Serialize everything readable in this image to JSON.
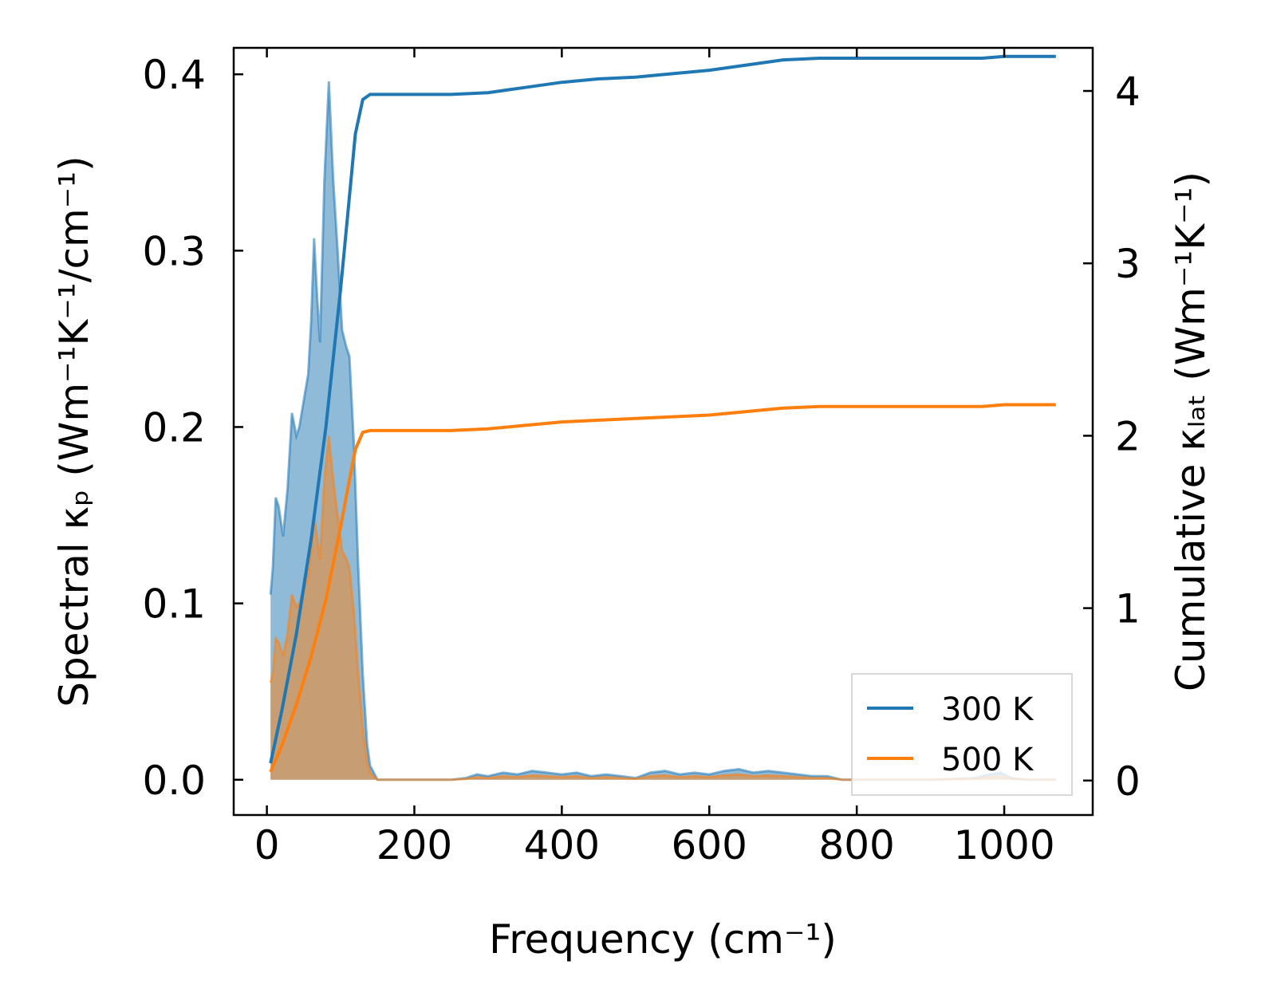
{
  "chart_data": {
    "type": "line",
    "xlabel": "Frequency (cm⁻¹)",
    "ylabel_left": "Spectral κₚ (Wm⁻¹K⁻¹/cm⁻¹)",
    "ylabel_right": "Cumulative κₗₐₜ (Wm⁻¹K⁻¹)",
    "xlim": [
      -45,
      1120
    ],
    "ylim_left": [
      -0.02,
      0.415
    ],
    "ylim_right": [
      -0.2,
      4.25
    ],
    "xticks": [
      0,
      200,
      400,
      600,
      800,
      1000
    ],
    "xtick_labels": [
      "0",
      "200",
      "400",
      "600",
      "800",
      "1000"
    ],
    "yticks_left": [
      0.0,
      0.1,
      0.2,
      0.3,
      0.4
    ],
    "ytick_labels_left": [
      "0.0",
      "0.1",
      "0.2",
      "0.3",
      "0.4"
    ],
    "yticks_right": [
      0,
      1,
      2,
      3,
      4
    ],
    "ytick_labels_right": [
      "0",
      "1",
      "2",
      "3",
      "4"
    ],
    "legend_position": "bottom-right",
    "series": [
      {
        "name": "300 K",
        "color": "#1f77b4",
        "spectral": [
          [
            5,
            0.105
          ],
          [
            8,
            0.12
          ],
          [
            12,
            0.16
          ],
          [
            16,
            0.155
          ],
          [
            22,
            0.138
          ],
          [
            28,
            0.165
          ],
          [
            34,
            0.208
          ],
          [
            40,
            0.195
          ],
          [
            44,
            0.2
          ],
          [
            50,
            0.215
          ],
          [
            56,
            0.23
          ],
          [
            60,
            0.26
          ],
          [
            64,
            0.307
          ],
          [
            68,
            0.275
          ],
          [
            72,
            0.248
          ],
          [
            78,
            0.34
          ],
          [
            84,
            0.396
          ],
          [
            90,
            0.34
          ],
          [
            96,
            0.3
          ],
          [
            102,
            0.255
          ],
          [
            108,
            0.245
          ],
          [
            112,
            0.24
          ],
          [
            118,
            0.19
          ],
          [
            124,
            0.12
          ],
          [
            130,
            0.06
          ],
          [
            136,
            0.02
          ],
          [
            140,
            0.008
          ],
          [
            150,
            0.0
          ],
          [
            250,
            0.0
          ],
          [
            270,
            0.001
          ],
          [
            285,
            0.003
          ],
          [
            300,
            0.002
          ],
          [
            320,
            0.004
          ],
          [
            340,
            0.003
          ],
          [
            360,
            0.005
          ],
          [
            380,
            0.004
          ],
          [
            400,
            0.003
          ],
          [
            420,
            0.004
          ],
          [
            440,
            0.002
          ],
          [
            460,
            0.003
          ],
          [
            480,
            0.002
          ],
          [
            500,
            0.001
          ],
          [
            520,
            0.004
          ],
          [
            540,
            0.005
          ],
          [
            560,
            0.003
          ],
          [
            580,
            0.004
          ],
          [
            600,
            0.003
          ],
          [
            620,
            0.005
          ],
          [
            640,
            0.006
          ],
          [
            660,
            0.004
          ],
          [
            680,
            0.005
          ],
          [
            700,
            0.004
          ],
          [
            720,
            0.003
          ],
          [
            740,
            0.002
          ],
          [
            760,
            0.002
          ],
          [
            780,
            0.0
          ],
          [
            800,
            0.0
          ],
          [
            900,
            0.0
          ],
          [
            960,
            0.001
          ],
          [
            980,
            0.003
          ],
          [
            995,
            0.004
          ],
          [
            1010,
            0.001
          ],
          [
            1030,
            0.0
          ],
          [
            1070,
            0.0
          ]
        ],
        "cumulative": [
          [
            5,
            0.1
          ],
          [
            20,
            0.4
          ],
          [
            40,
            0.85
          ],
          [
            60,
            1.4
          ],
          [
            80,
            2.05
          ],
          [
            100,
            2.85
          ],
          [
            110,
            3.3
          ],
          [
            120,
            3.75
          ],
          [
            130,
            3.95
          ],
          [
            140,
            3.98
          ],
          [
            200,
            3.98
          ],
          [
            250,
            3.98
          ],
          [
            300,
            3.99
          ],
          [
            350,
            4.02
          ],
          [
            400,
            4.05
          ],
          [
            450,
            4.07
          ],
          [
            500,
            4.08
          ],
          [
            550,
            4.1
          ],
          [
            600,
            4.12
          ],
          [
            650,
            4.15
          ],
          [
            700,
            4.18
          ],
          [
            750,
            4.19
          ],
          [
            800,
            4.19
          ],
          [
            900,
            4.19
          ],
          [
            970,
            4.19
          ],
          [
            1000,
            4.2
          ],
          [
            1070,
            4.2
          ]
        ]
      },
      {
        "name": "500 K",
        "color": "#ff7f0e",
        "spectral": [
          [
            5,
            0.055
          ],
          [
            8,
            0.06
          ],
          [
            12,
            0.08
          ],
          [
            16,
            0.078
          ],
          [
            22,
            0.07
          ],
          [
            28,
            0.083
          ],
          [
            34,
            0.105
          ],
          [
            40,
            0.098
          ],
          [
            44,
            0.1
          ],
          [
            50,
            0.108
          ],
          [
            56,
            0.115
          ],
          [
            60,
            0.13
          ],
          [
            64,
            0.15
          ],
          [
            68,
            0.138
          ],
          [
            72,
            0.125
          ],
          [
            78,
            0.17
          ],
          [
            84,
            0.195
          ],
          [
            90,
            0.17
          ],
          [
            96,
            0.15
          ],
          [
            102,
            0.13
          ],
          [
            108,
            0.125
          ],
          [
            112,
            0.12
          ],
          [
            118,
            0.095
          ],
          [
            124,
            0.06
          ],
          [
            130,
            0.03
          ],
          [
            136,
            0.01
          ],
          [
            140,
            0.004
          ],
          [
            150,
            0.0
          ],
          [
            250,
            0.0
          ],
          [
            270,
            0.0005
          ],
          [
            285,
            0.0015
          ],
          [
            300,
            0.001
          ],
          [
            320,
            0.002
          ],
          [
            340,
            0.0015
          ],
          [
            360,
            0.0025
          ],
          [
            380,
            0.002
          ],
          [
            400,
            0.0015
          ],
          [
            420,
            0.002
          ],
          [
            440,
            0.001
          ],
          [
            460,
            0.0015
          ],
          [
            480,
            0.001
          ],
          [
            500,
            0.0005
          ],
          [
            520,
            0.002
          ],
          [
            540,
            0.0025
          ],
          [
            560,
            0.0015
          ],
          [
            580,
            0.002
          ],
          [
            600,
            0.0015
          ],
          [
            620,
            0.0025
          ],
          [
            640,
            0.003
          ],
          [
            660,
            0.002
          ],
          [
            680,
            0.0025
          ],
          [
            700,
            0.002
          ],
          [
            720,
            0.0015
          ],
          [
            740,
            0.001
          ],
          [
            760,
            0.001
          ],
          [
            780,
            0.0
          ],
          [
            800,
            0.0
          ],
          [
            900,
            0.0
          ],
          [
            960,
            0.0005
          ],
          [
            980,
            0.0015
          ],
          [
            995,
            0.002
          ],
          [
            1010,
            0.0005
          ],
          [
            1030,
            0.0
          ],
          [
            1070,
            0.0
          ]
        ],
        "cumulative": [
          [
            5,
            0.05
          ],
          [
            20,
            0.2
          ],
          [
            40,
            0.44
          ],
          [
            60,
            0.72
          ],
          [
            80,
            1.05
          ],
          [
            100,
            1.47
          ],
          [
            110,
            1.7
          ],
          [
            120,
            1.92
          ],
          [
            130,
            2.02
          ],
          [
            140,
            2.03
          ],
          [
            200,
            2.03
          ],
          [
            250,
            2.03
          ],
          [
            300,
            2.04
          ],
          [
            350,
            2.06
          ],
          [
            400,
            2.08
          ],
          [
            450,
            2.09
          ],
          [
            500,
            2.1
          ],
          [
            550,
            2.11
          ],
          [
            600,
            2.12
          ],
          [
            650,
            2.14
          ],
          [
            700,
            2.16
          ],
          [
            750,
            2.17
          ],
          [
            800,
            2.17
          ],
          [
            900,
            2.17
          ],
          [
            970,
            2.17
          ],
          [
            1000,
            2.18
          ],
          [
            1070,
            2.18
          ]
        ]
      }
    ]
  }
}
